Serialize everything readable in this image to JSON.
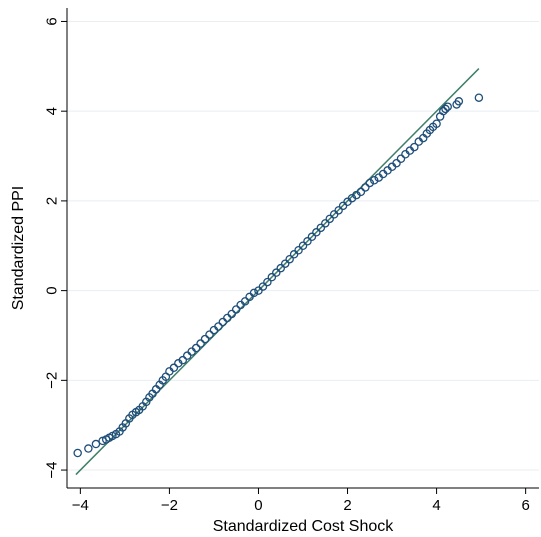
{
  "chart_data": {
    "type": "scatter",
    "title": "",
    "xlabel": "Standardized Cost Shock",
    "ylabel": "Standardized PPI",
    "xlim": [
      -4.3,
      6.3
    ],
    "ylim": [
      -4.4,
      6.3
    ],
    "xticks": [
      -4,
      -2,
      0,
      2,
      4,
      6
    ],
    "yticks": [
      -4,
      -2,
      0,
      2,
      4,
      6
    ],
    "xtick_labels": [
      "−4",
      "−2",
      "0",
      "2",
      "4",
      "6"
    ],
    "ytick_labels": [
      "−4",
      "−2",
      "0",
      "2",
      "4",
      "6"
    ],
    "grid": true,
    "colors": {
      "points": "#1f4e79",
      "reference_line": "#3f7f6a",
      "grid": "#e8eef2"
    },
    "reference_line": {
      "x": [
        -4.1,
        4.95
      ],
      "y": [
        -4.1,
        4.95
      ]
    },
    "series": [
      {
        "x": [
          -4.06,
          -3.82,
          -3.65,
          -3.5,
          -3.42,
          -3.35,
          -3.28,
          -3.2,
          -3.12,
          -3.05,
          -2.98,
          -2.9,
          -2.83,
          -2.75,
          -2.68,
          -2.6,
          -2.52,
          -2.45,
          -2.38,
          -2.3,
          -2.22,
          -2.15,
          -2.08,
          -2.0,
          -1.9,
          -1.8,
          -1.7,
          -1.6,
          -1.5,
          -1.4,
          -1.3,
          -1.2,
          -1.1,
          -1.0,
          -0.9,
          -0.8,
          -0.7,
          -0.6,
          -0.5,
          -0.4,
          -0.3,
          -0.2,
          -0.1,
          0.0,
          0.1,
          0.2,
          0.3,
          0.4,
          0.5,
          0.6,
          0.7,
          0.8,
          0.9,
          1.0,
          1.1,
          1.2,
          1.3,
          1.4,
          1.5,
          1.6,
          1.7,
          1.8,
          1.9,
          2.0,
          2.1,
          2.2,
          2.3,
          2.4,
          2.5,
          2.6,
          2.7,
          2.8,
          2.9,
          3.0,
          3.1,
          3.2,
          3.3,
          3.4,
          3.5,
          3.6,
          3.7,
          3.78,
          3.85,
          3.92,
          4.0,
          4.08,
          4.15,
          4.2,
          4.25,
          4.45,
          4.5,
          4.95
        ],
        "y": [
          -3.62,
          -3.52,
          -3.42,
          -3.35,
          -3.32,
          -3.28,
          -3.24,
          -3.2,
          -3.14,
          -3.05,
          -2.96,
          -2.85,
          -2.77,
          -2.71,
          -2.66,
          -2.58,
          -2.48,
          -2.38,
          -2.3,
          -2.2,
          -2.1,
          -2.0,
          -1.92,
          -1.8,
          -1.72,
          -1.62,
          -1.55,
          -1.45,
          -1.36,
          -1.28,
          -1.18,
          -1.08,
          -0.98,
          -0.88,
          -0.8,
          -0.7,
          -0.61,
          -0.52,
          -0.42,
          -0.32,
          -0.24,
          -0.14,
          -0.05,
          0.0,
          0.09,
          0.19,
          0.3,
          0.4,
          0.5,
          0.6,
          0.7,
          0.81,
          0.9,
          1.0,
          1.1,
          1.2,
          1.3,
          1.4,
          1.5,
          1.6,
          1.7,
          1.79,
          1.89,
          1.98,
          2.06,
          2.13,
          2.2,
          2.3,
          2.4,
          2.46,
          2.52,
          2.6,
          2.68,
          2.76,
          2.84,
          2.94,
          3.04,
          3.12,
          3.2,
          3.32,
          3.4,
          3.5,
          3.58,
          3.65,
          3.72,
          3.88,
          4.0,
          4.05,
          4.1,
          4.15,
          4.22,
          4.3
        ]
      }
    ]
  }
}
